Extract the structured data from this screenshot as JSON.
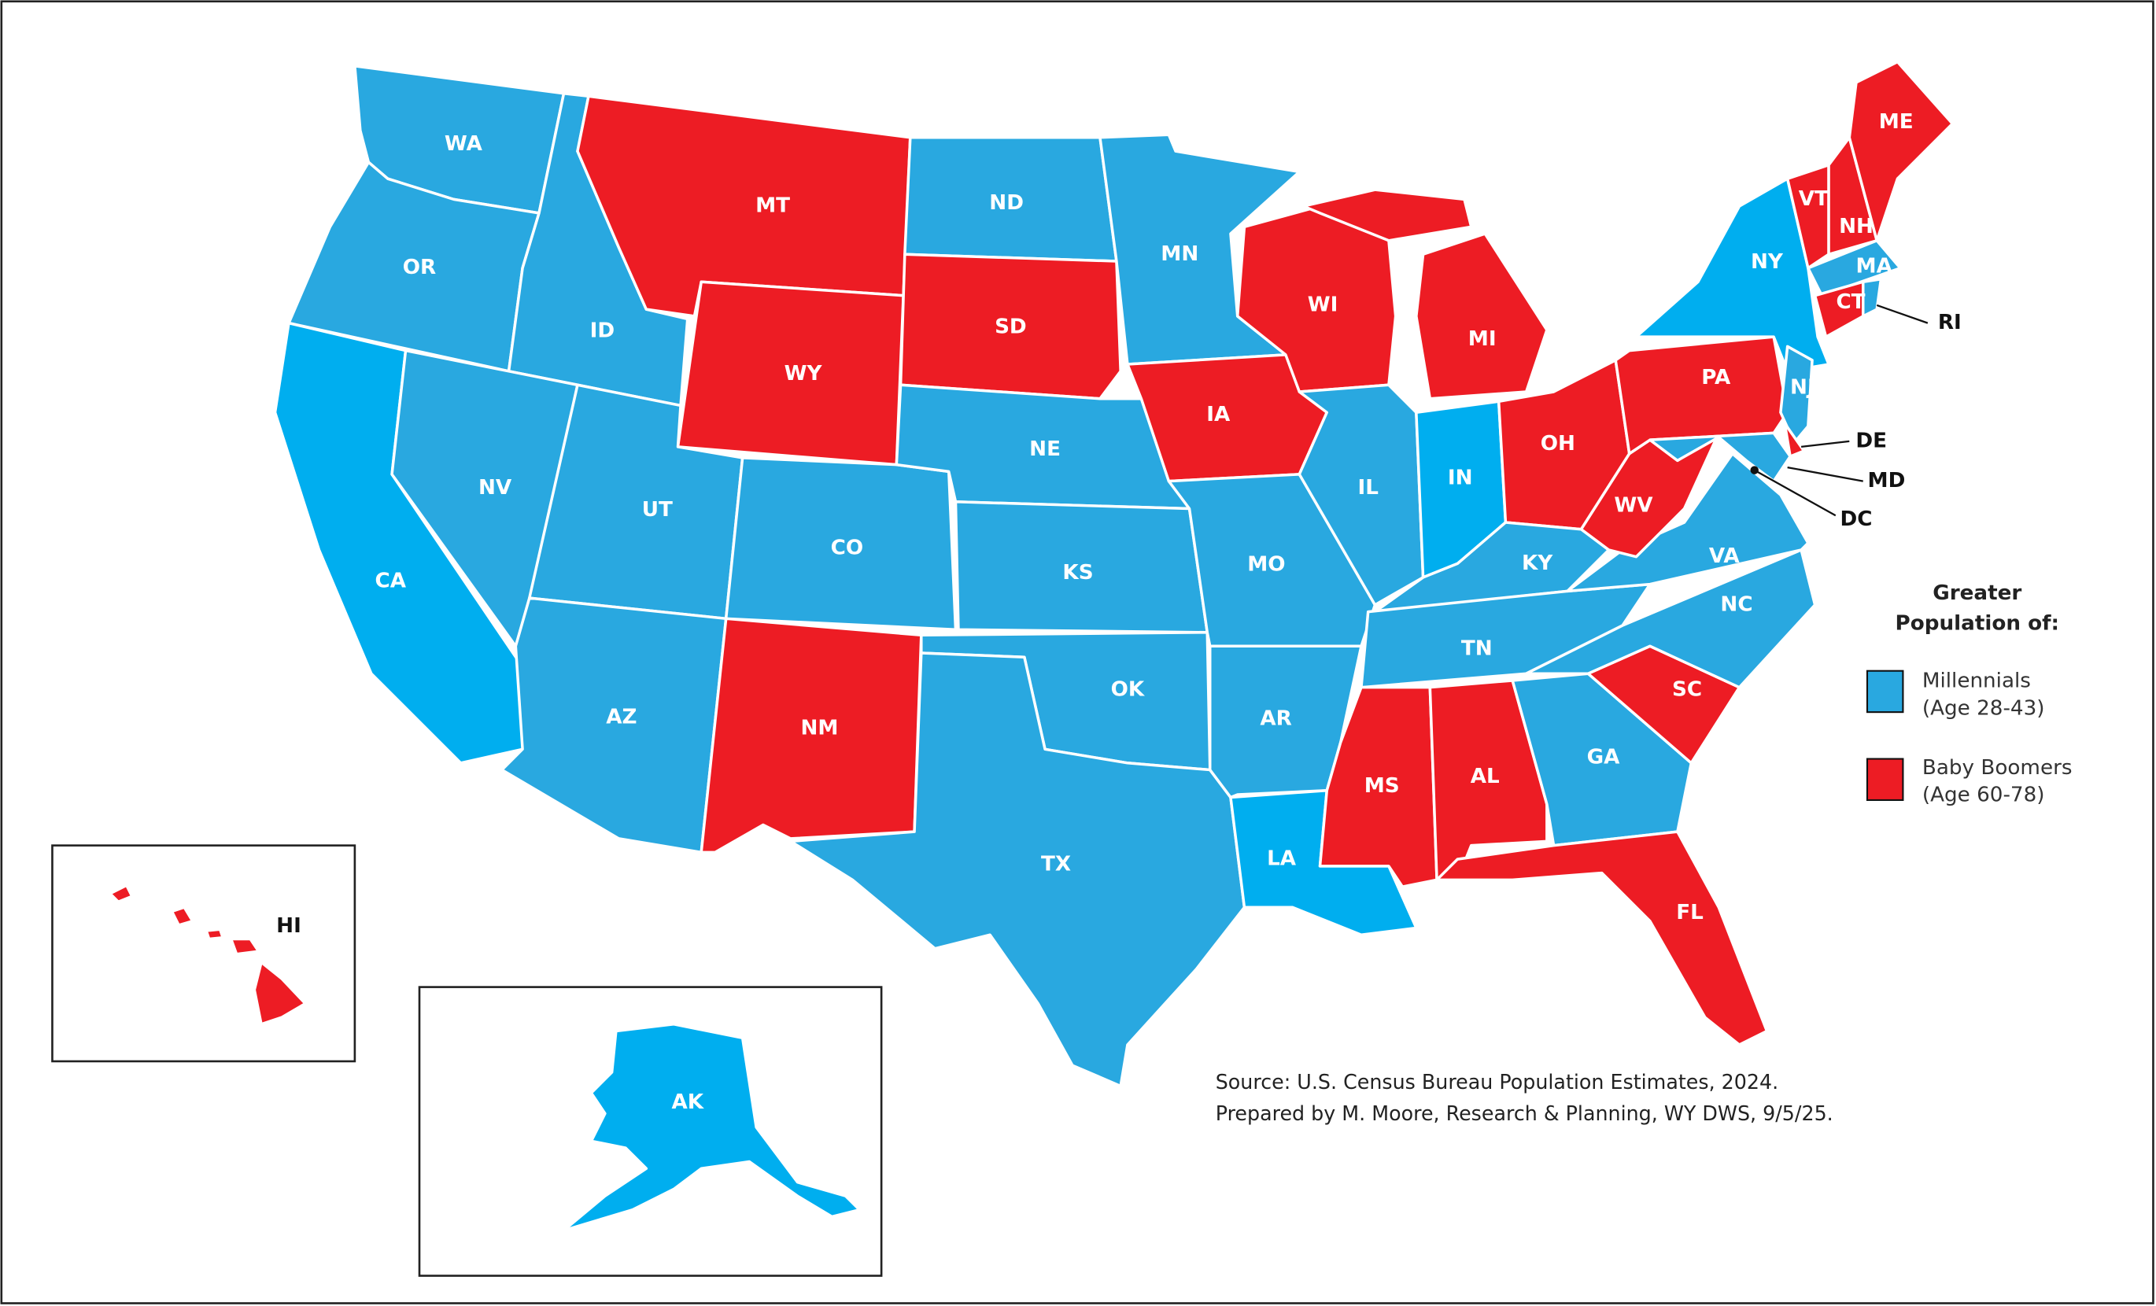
{
  "colors": {
    "millennials": "#29a8e0",
    "millennials_bright": "#00aeef",
    "boomers": "#ed1c24",
    "border": "#ffffff"
  },
  "legend": {
    "title_line1": "Greater",
    "title_line2": "Population of:",
    "items": [
      {
        "key": "millennials",
        "label": "Millennials",
        "sublabel": "(Age 28-43)"
      },
      {
        "key": "boomers",
        "label": "Baby Boomers",
        "sublabel": "(Age 60-78)"
      }
    ]
  },
  "source": {
    "line1": "Source: U.S. Census Bureau Population Estimates, 2024.",
    "line2": "Prepared by M. Moore, Research & Planning, WY DWS, 9/5/25."
  },
  "states": {
    "WA": "millennials",
    "OR": "millennials",
    "CA": "millennials",
    "ID": "millennials",
    "NV": "millennials",
    "MT": "boomers",
    "WY": "boomers",
    "UT": "millennials",
    "AZ": "millennials",
    "CO": "millennials",
    "NM": "boomers",
    "ND": "millennials",
    "SD": "boomers",
    "NE": "millennials",
    "KS": "millennials",
    "OK": "millennials",
    "TX": "millennials",
    "MN": "millennials",
    "IA": "boomers",
    "MO": "millennials",
    "AR": "millennials",
    "LA": "millennials",
    "WI": "boomers",
    "IL": "millennials",
    "MI": "boomers",
    "IN": "millennials",
    "OH": "boomers",
    "KY": "millennials",
    "TN": "millennials",
    "MS": "boomers",
    "AL": "boomers",
    "GA": "millennials",
    "FL": "boomers",
    "SC": "boomers",
    "NC": "millennials",
    "VA": "millennials",
    "WV": "boomers",
    "PA": "boomers",
    "NY": "millennials",
    "NJ": "millennials",
    "DE": "boomers",
    "MD": "millennials",
    "DC": "millennials",
    "VT": "boomers",
    "NH": "boomers",
    "ME": "boomers",
    "MA": "millennials",
    "CT": "boomers",
    "RI": "millennials",
    "HI": "boomers",
    "AK": "millennials"
  },
  "labels": {
    "WA": "WA",
    "OR": "OR",
    "CA": "CA",
    "ID": "ID",
    "NV": "NV",
    "MT": "MT",
    "WY": "WY",
    "UT": "UT",
    "AZ": "AZ",
    "CO": "CO",
    "NM": "NM",
    "ND": "ND",
    "SD": "SD",
    "NE": "NE",
    "KS": "KS",
    "OK": "OK",
    "TX": "TX",
    "MN": "MN",
    "IA": "IA",
    "MO": "MO",
    "AR": "AR",
    "LA": "LA",
    "WI": "WI",
    "IL": "IL",
    "MI": "MI",
    "IN": "IN",
    "OH": "OH",
    "KY": "KY",
    "TN": "TN",
    "MS": "MS",
    "AL": "AL",
    "GA": "GA",
    "FL": "FL",
    "SC": "SC",
    "NC": "NC",
    "VA": "VA",
    "WV": "WV",
    "PA": "PA",
    "NY": "NY",
    "NJ": "NJ",
    "DE": "DE",
    "MD": "MD",
    "DC": "DC",
    "VT": "VT",
    "NH": "NH",
    "ME": "ME",
    "MA": "MA",
    "CT": "CT",
    "RI": "RI",
    "HI": "HI",
    "AK": "AK"
  }
}
